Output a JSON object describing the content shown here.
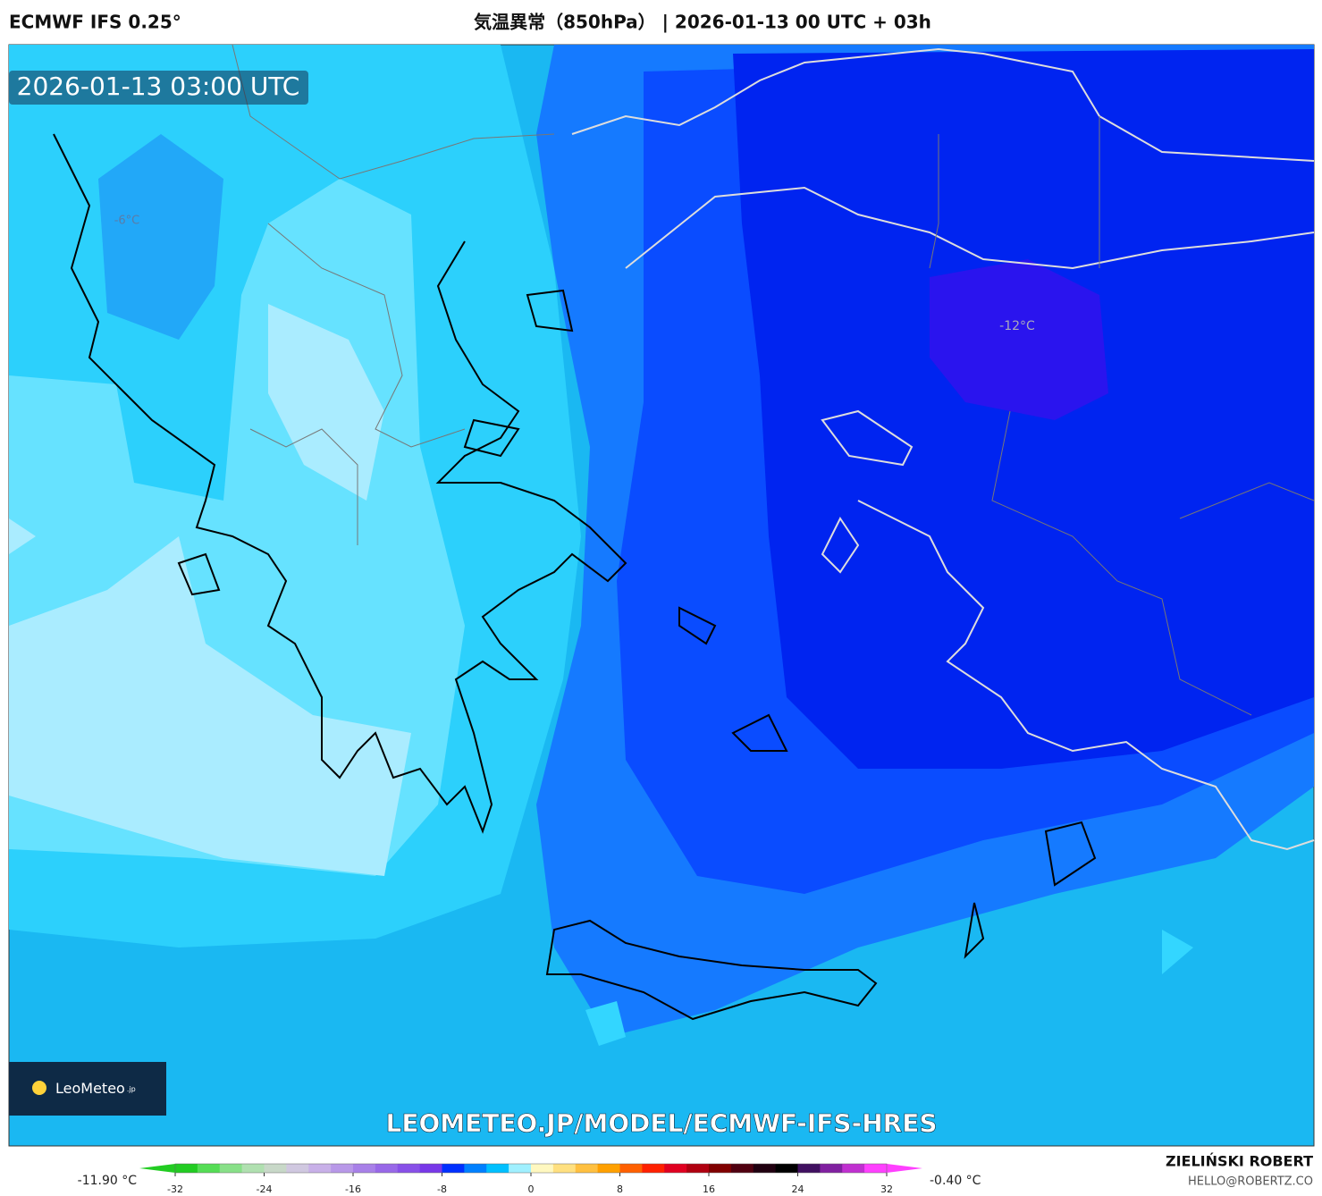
{
  "header": {
    "model": "ECMWF IFS 0.25°",
    "title": "気温異常（850hPa） | 2026-01-13 00 UTC + 03h"
  },
  "map": {
    "timestamp": "2026-01-13 03:00 UTC",
    "contour_labels": [
      "-6°C",
      "-12°C"
    ],
    "watermark": "LEOMETEO.JP/MODEL/ECMWF-IFS-HRES",
    "logo": {
      "name": "LeoMeteo",
      "suffix": ".jp"
    }
  },
  "colorbar": {
    "min_label": "-11.90 °C",
    "max_label": "-0.40 °C",
    "range": [
      -32,
      32
    ],
    "ticks": [
      -32,
      -24,
      -16,
      -8,
      0,
      8,
      16,
      24,
      32
    ],
    "colors": [
      "#22cc22",
      "#55dd55",
      "#88e088",
      "#b0e0b0",
      "#c8d8c8",
      "#d0c8e0",
      "#c8b0e8",
      "#b898e8",
      "#a880e8",
      "#9868e8",
      "#8850e8",
      "#7838e8",
      "#0030ff",
      "#0080ff",
      "#00c0ff",
      "#a0f0ff",
      "#fff8c0",
      "#ffe080",
      "#ffc040",
      "#ffa000",
      "#ff6000",
      "#ff2000",
      "#e00020",
      "#b00010",
      "#800000",
      "#500010",
      "#200010",
      "#000000",
      "#401060",
      "#8020a0",
      "#c030d0",
      "#ff40ff"
    ]
  },
  "footer": {
    "author": "ZIELIŃSKI ROBERT",
    "email": "HELLO@ROBERTZ.CO"
  }
}
